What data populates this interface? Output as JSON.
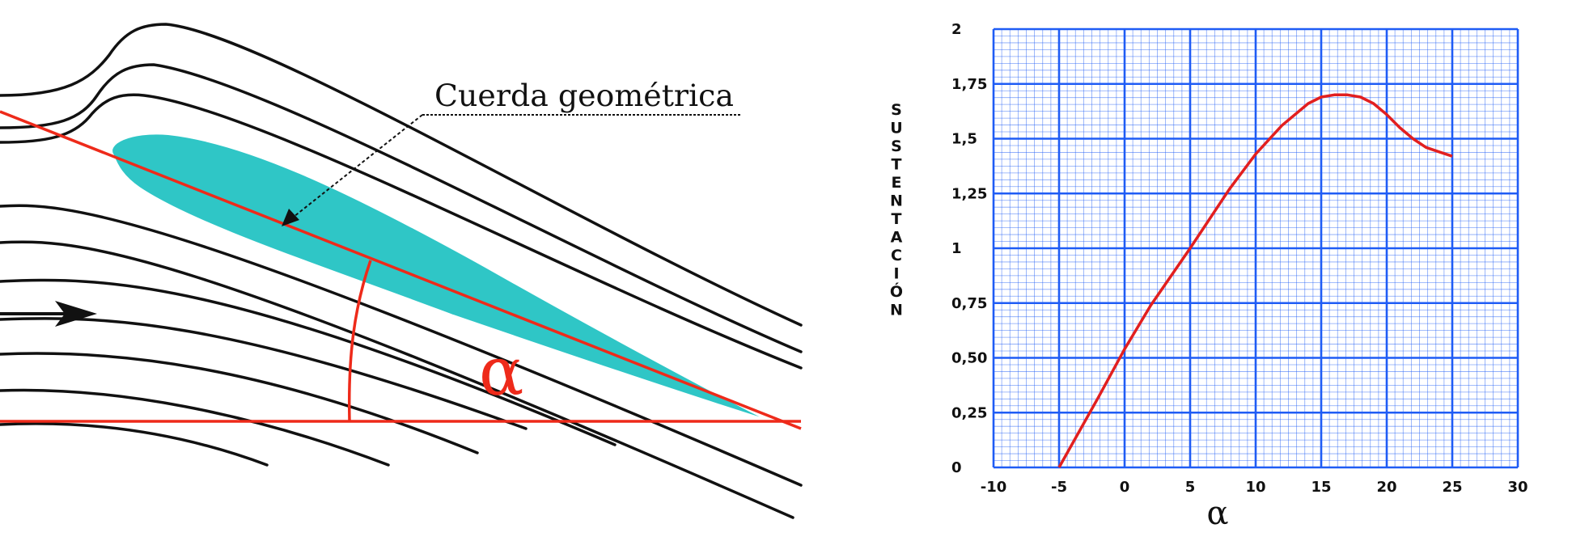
{
  "diagram": {
    "chord_label": "Cuerda geométrica",
    "angle_symbol": "α",
    "colors": {
      "airfoil_fill": "#2fc6c6",
      "reference_lines": "#ee2a1a",
      "streamlines": "#111111"
    }
  },
  "chart_data": {
    "type": "line",
    "title": "",
    "xlabel": "α",
    "ylabel": "SUSTENTACIÓN",
    "xlim": [
      -10,
      30
    ],
    "ylim": [
      0,
      2
    ],
    "xticks": [
      -10,
      -5,
      0,
      5,
      10,
      15,
      20,
      25,
      30
    ],
    "xtick_labels": [
      "-10",
      "-5",
      "0",
      "5",
      "10",
      "15",
      "20",
      "25",
      "30"
    ],
    "yticks": [
      0,
      0.25,
      0.5,
      0.75,
      1,
      1.25,
      1.5,
      1.75,
      2
    ],
    "ytick_labels": [
      "0",
      "0,25",
      "0,50",
      "0,75",
      "1",
      "1,25",
      "1,5",
      "1,75",
      "2"
    ],
    "grid": true,
    "colors": {
      "grid": "#1f5cf5",
      "line": "#e21f1f"
    },
    "series": [
      {
        "x": [
          -5,
          -2,
          0,
          2,
          5,
          8,
          10,
          12,
          14,
          15,
          16,
          17,
          18,
          19,
          20,
          21,
          22,
          23,
          24,
          25
        ],
        "y": [
          0,
          0.32,
          0.54,
          0.74,
          1.0,
          1.27,
          1.43,
          1.56,
          1.66,
          1.69,
          1.7,
          1.7,
          1.69,
          1.66,
          1.61,
          1.55,
          1.5,
          1.46,
          1.44,
          1.42
        ]
      }
    ]
  }
}
